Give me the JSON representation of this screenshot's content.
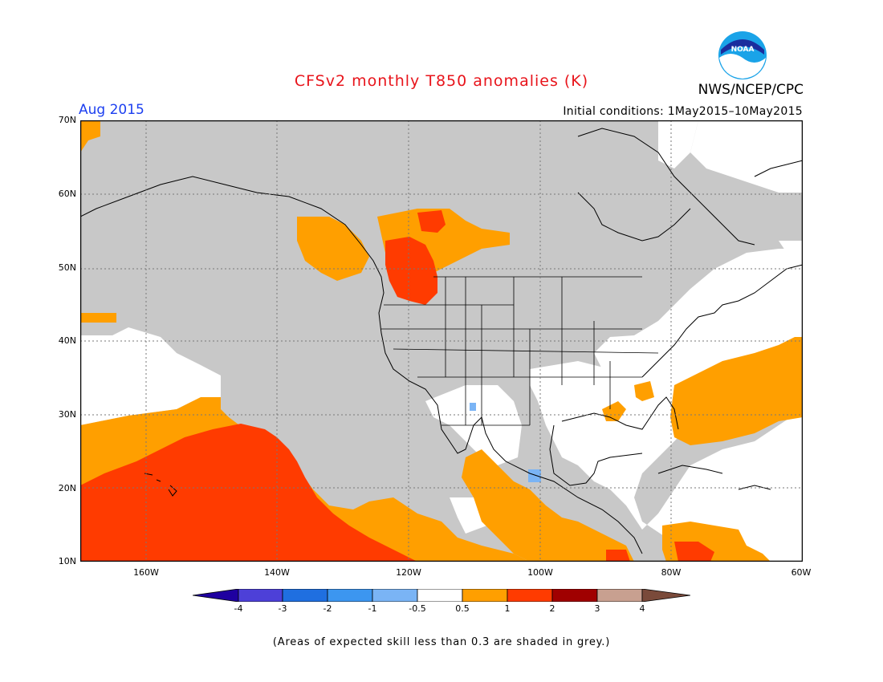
{
  "header": {
    "title": "CFSv2 monthly T850 anomalies (K)",
    "month": "Aug 2015",
    "initial_conditions": "Initial conditions: 1May2015–10May2015",
    "agency": "NWS/NCEP/CPC",
    "logo_text": "NOAA"
  },
  "map": {
    "lat_labels": [
      "70N",
      "60N",
      "50N",
      "40N",
      "30N",
      "20N",
      "10N"
    ],
    "lon_labels": [
      "160W",
      "140W",
      "120W",
      "100W",
      "80W",
      "60W"
    ],
    "lon_range": [
      "170W",
      "60W"
    ],
    "lat_range": [
      "10N",
      "70N"
    ],
    "grid": "dotted",
    "colors": {
      "skill_mask": "#c8c8c8",
      "neutral": "#ffffff",
      "warm_0_5_1": "#ff9f00",
      "warm_1_2": "#ff3b00",
      "cool_minus_1_minus_0_5": "#7ab4f5"
    }
  },
  "colorbar": {
    "labels": [
      "-4",
      "-3",
      "-2",
      "-1",
      "-0.5",
      "0.5",
      "1",
      "2",
      "3",
      "4"
    ],
    "colors": [
      "#1f00a0",
      "#4d40d8",
      "#1f6fe0",
      "#3c96f0",
      "#7ab4f5",
      "#ffffff",
      "#ff9f00",
      "#ff3b00",
      "#a00000",
      "#c8a090",
      "#7a4a3a"
    ]
  },
  "footnote": "(Areas of expected skill less than 0.3 are shaded in grey.)"
}
